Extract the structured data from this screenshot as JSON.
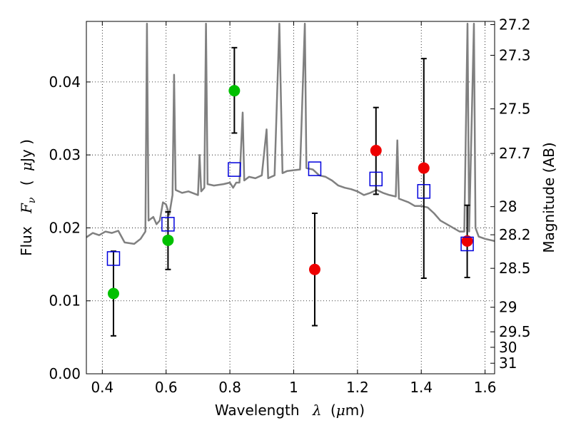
{
  "chart_data": {
    "type": "scatter",
    "xlabel": {
      "text": "Wavelength",
      "symbol": "λ",
      "unit_open": "(",
      "unit_mu": "μ",
      "unit": "m)"
    },
    "ylabel": {
      "text": "Flux",
      "symbol": "F",
      "subscript": "ν",
      "unit_open": "(",
      "unit_mu": "μ",
      "unit": "Jy )"
    },
    "y2label": "Magnitude (AB)",
    "xlim": [
      0.35,
      1.63
    ],
    "ylim": [
      0.0,
      0.0483
    ],
    "x_ticks": [
      0.4,
      0.6,
      0.8,
      1.0,
      1.2,
      1.4,
      1.6
    ],
    "x_tick_labels": [
      "0.4",
      "0.6",
      "0.8",
      "1",
      "1.2",
      "1.4",
      "1.6"
    ],
    "y_ticks": [
      0.0,
      0.01,
      0.02,
      0.03,
      0.04
    ],
    "y_tick_labels": [
      "0.00",
      "0.01",
      "0.02",
      "0.03",
      "0.04"
    ],
    "mag_ticks": [
      27.2,
      27.3,
      27.5,
      27.7,
      28,
      28.2,
      28.5,
      29,
      29.5,
      30,
      31
    ],
    "mag_tick_labels": [
      "27.2",
      "27.3",
      "27.5",
      "27.7",
      "28",
      "28.2",
      "28.5",
      "29",
      "29.5",
      "30",
      "31"
    ],
    "grid": true,
    "colors": {
      "sed_line": "#808080",
      "green_points": "#00c000",
      "red_points": "#ee0000",
      "model_squares": "#0000dd",
      "errorbars": "#000000"
    },
    "series": [
      {
        "marker": "circle",
        "color": "green",
        "points": [
          {
            "x": 0.435,
            "y": 0.011,
            "err_low": 0.0052,
            "err_high": 0.0168
          },
          {
            "x": 0.606,
            "y": 0.0183,
            "err_low": 0.0143,
            "err_high": 0.0222
          },
          {
            "x": 0.814,
            "y": 0.0388,
            "err_low": 0.033,
            "err_high": 0.0447
          }
        ]
      },
      {
        "marker": "circle",
        "color": "red",
        "points": [
          {
            "x": 1.066,
            "y": 0.0143,
            "err_low": 0.0066,
            "err_high": 0.022
          },
          {
            "x": 1.258,
            "y": 0.0306,
            "err_low": 0.0246,
            "err_high": 0.0365
          },
          {
            "x": 1.408,
            "y": 0.0282,
            "err_low": 0.0131,
            "err_high": 0.0432
          },
          {
            "x": 1.544,
            "y": 0.0182,
            "err_low": 0.0132,
            "err_high": 0.0231
          }
        ]
      },
      {
        "marker": "square",
        "color": "blue",
        "points": [
          {
            "x": 0.435,
            "y": 0.0158
          },
          {
            "x": 0.606,
            "y": 0.0205
          },
          {
            "x": 0.814,
            "y": 0.028
          },
          {
            "x": 1.066,
            "y": 0.0281
          },
          {
            "x": 1.258,
            "y": 0.0267
          },
          {
            "x": 1.408,
            "y": 0.025
          },
          {
            "x": 1.544,
            "y": 0.0178
          }
        ]
      },
      {
        "marker": "line",
        "color": "gray",
        "points": [
          [
            0.35,
            0.0187
          ],
          [
            0.37,
            0.0193
          ],
          [
            0.39,
            0.019
          ],
          [
            0.41,
            0.0195
          ],
          [
            0.43,
            0.0193
          ],
          [
            0.45,
            0.0196
          ],
          [
            0.47,
            0.018
          ],
          [
            0.5,
            0.0178
          ],
          [
            0.52,
            0.0185
          ],
          [
            0.535,
            0.0195
          ],
          [
            0.54,
            0.048
          ],
          [
            0.545,
            0.021
          ],
          [
            0.56,
            0.0215
          ],
          [
            0.57,
            0.0205
          ],
          [
            0.58,
            0.021
          ],
          [
            0.59,
            0.0235
          ],
          [
            0.6,
            0.0232
          ],
          [
            0.61,
            0.0218
          ],
          [
            0.62,
            0.0245
          ],
          [
            0.625,
            0.041
          ],
          [
            0.63,
            0.0252
          ],
          [
            0.65,
            0.0248
          ],
          [
            0.67,
            0.025
          ],
          [
            0.7,
            0.0245
          ],
          [
            0.705,
            0.03
          ],
          [
            0.71,
            0.025
          ],
          [
            0.72,
            0.0255
          ],
          [
            0.725,
            0.048
          ],
          [
            0.73,
            0.026
          ],
          [
            0.75,
            0.0258
          ],
          [
            0.78,
            0.026
          ],
          [
            0.8,
            0.0262
          ],
          [
            0.81,
            0.0255
          ],
          [
            0.82,
            0.0262
          ],
          [
            0.83,
            0.0262
          ],
          [
            0.84,
            0.0358
          ],
          [
            0.845,
            0.0265
          ],
          [
            0.86,
            0.027
          ],
          [
            0.88,
            0.0268
          ],
          [
            0.9,
            0.0272
          ],
          [
            0.915,
            0.0335
          ],
          [
            0.92,
            0.0268
          ],
          [
            0.94,
            0.0272
          ],
          [
            0.955,
            0.048
          ],
          [
            0.965,
            0.0275
          ],
          [
            0.98,
            0.0278
          ],
          [
            1.0,
            0.0279
          ],
          [
            1.02,
            0.028
          ],
          [
            1.035,
            0.048
          ],
          [
            1.04,
            0.0282
          ],
          [
            1.06,
            0.028
          ],
          [
            1.08,
            0.0272
          ],
          [
            1.1,
            0.027
          ],
          [
            1.12,
            0.0265
          ],
          [
            1.14,
            0.0258
          ],
          [
            1.16,
            0.0255
          ],
          [
            1.18,
            0.0253
          ],
          [
            1.2,
            0.025
          ],
          [
            1.22,
            0.0245
          ],
          [
            1.24,
            0.0248
          ],
          [
            1.26,
            0.0252
          ],
          [
            1.28,
            0.0248
          ],
          [
            1.3,
            0.0245
          ],
          [
            1.32,
            0.0243
          ],
          [
            1.325,
            0.032
          ],
          [
            1.33,
            0.024
          ],
          [
            1.36,
            0.0235
          ],
          [
            1.38,
            0.023
          ],
          [
            1.4,
            0.023
          ],
          [
            1.42,
            0.0228
          ],
          [
            1.44,
            0.022
          ],
          [
            1.46,
            0.021
          ],
          [
            1.48,
            0.0205
          ],
          [
            1.5,
            0.02
          ],
          [
            1.52,
            0.0195
          ],
          [
            1.535,
            0.0195
          ],
          [
            1.545,
            0.048
          ],
          [
            1.55,
            0.0195
          ],
          [
            1.565,
            0.048
          ],
          [
            1.57,
            0.02
          ],
          [
            1.58,
            0.0188
          ],
          [
            1.6,
            0.0185
          ],
          [
            1.63,
            0.0182
          ]
        ]
      }
    ]
  }
}
